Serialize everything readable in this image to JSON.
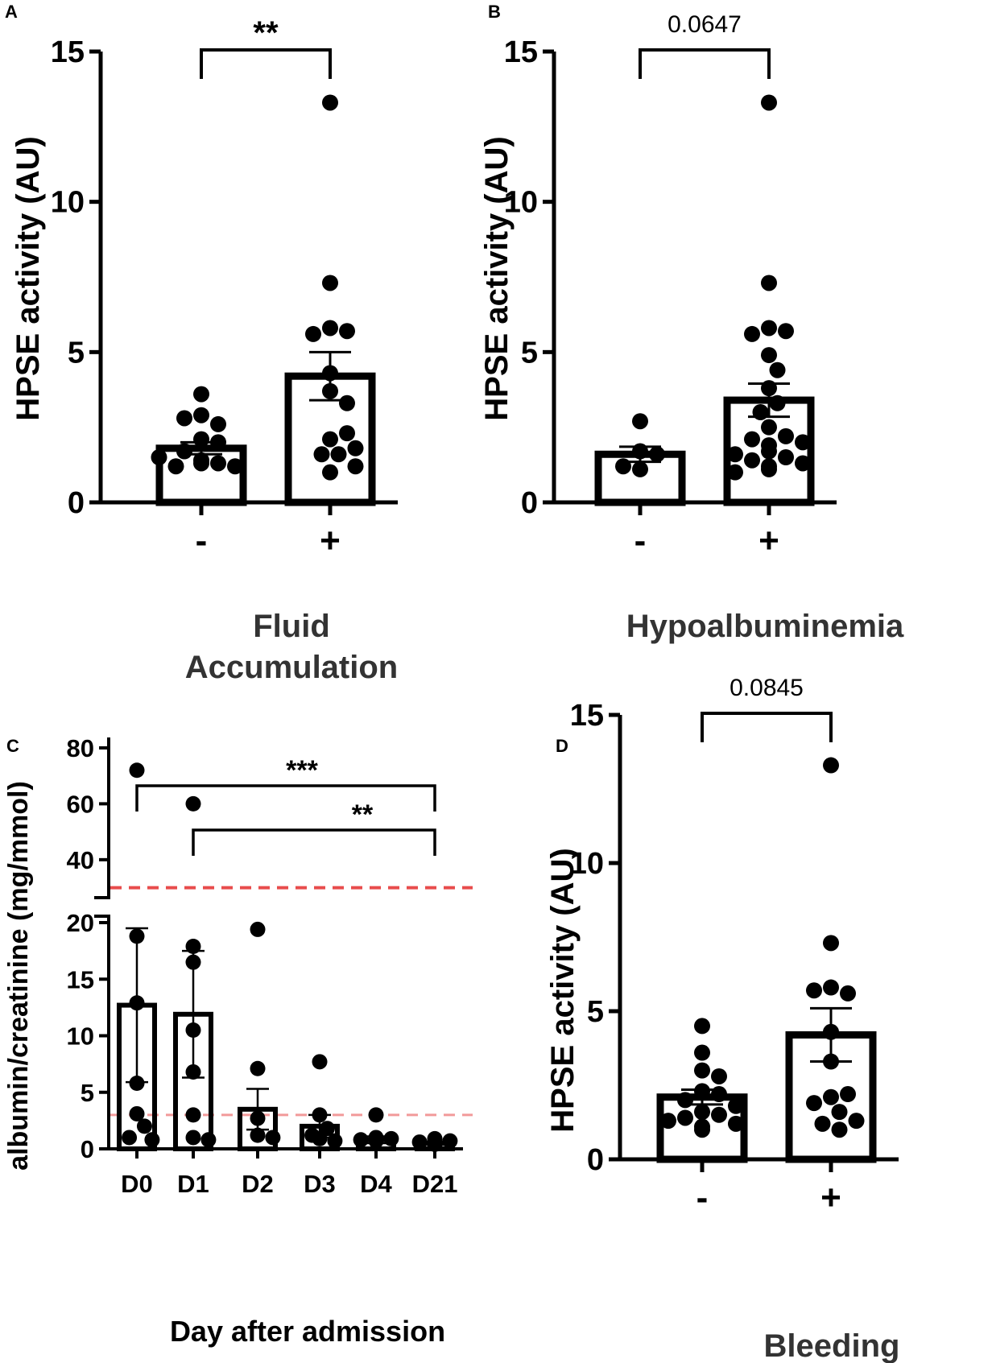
{
  "chart_data": [
    {
      "panel": "A",
      "type": "bar",
      "ylabel": "HPSE activity (AU)",
      "xlabel_lines": [
        "Fluid",
        "Accumulation"
      ],
      "categories": [
        "-",
        "+"
      ],
      "ylim": [
        0,
        15
      ],
      "yticks": [
        0,
        5,
        10,
        15
      ],
      "ytick_labels": [
        "0",
        "5",
        "10",
        "15"
      ],
      "means": [
        1.8,
        4.2
      ],
      "sem": [
        0.2,
        0.8
      ],
      "points": [
        [
          3.6,
          2.9,
          2.6,
          2.8,
          2.1,
          2.0,
          1.7,
          1.4,
          1.3,
          1.2,
          1.2,
          1.5,
          1.3
        ],
        [
          13.3,
          7.3,
          5.8,
          5.7,
          5.6,
          4.3,
          3.7,
          3.3,
          2.1,
          1.6,
          1.6,
          1.2,
          1.0,
          1.8,
          2.3
        ]
      ],
      "significance": {
        "pair": [
          0,
          1
        ],
        "label": "**"
      }
    },
    {
      "panel": "B",
      "type": "bar",
      "ylabel": "HPSE activity (AU)",
      "xlabel_lines": [
        "Hypoalbuminemia"
      ],
      "categories": [
        "-",
        "+"
      ],
      "ylim": [
        0,
        15
      ],
      "yticks": [
        0,
        5,
        10,
        15
      ],
      "ytick_labels": [
        "0",
        "5",
        "10",
        "15"
      ],
      "means": [
        1.6,
        3.4
      ],
      "sem": [
        0.25,
        0.55
      ],
      "points": [
        [
          2.7,
          1.7,
          1.6,
          1.1,
          1.2
        ],
        [
          13.3,
          7.3,
          5.8,
          5.7,
          5.6,
          4.9,
          4.4,
          3.8,
          3.3,
          3.0,
          2.5,
          2.2,
          2.1,
          2.0,
          1.7,
          1.5,
          1.4,
          1.3,
          1.1,
          1.0,
          1.2,
          1.6,
          1.9
        ]
      ],
      "significance": {
        "pair": [
          0,
          1
        ],
        "label": "0.0647"
      }
    },
    {
      "panel": "C",
      "type": "bar",
      "ylabel": "albumin/creatinine (mg/mmol)",
      "xlabel": "Day after admission",
      "categories": [
        "D0",
        "D1",
        "D2",
        "D3",
        "D4",
        "D21"
      ],
      "y_segments": [
        {
          "range": [
            0,
            20
          ],
          "ticks": [
            0,
            5,
            10,
            15,
            20
          ],
          "tick_labels": [
            "0",
            "5",
            "10",
            "15",
            "20"
          ]
        },
        {
          "range": [
            27,
            82
          ],
          "ticks": [
            40,
            60,
            80
          ],
          "tick_labels": [
            "40",
            "60",
            "80"
          ]
        }
      ],
      "means": [
        12.7,
        11.9,
        3.5,
        2.0,
        0.8,
        0.5
      ],
      "sem": [
        6.8,
        5.6,
        1.8,
        1.0,
        0.3,
        0.15
      ],
      "points": [
        [
          72,
          18.8,
          12.9,
          5.8,
          3.1,
          2.0,
          1.0,
          0.8
        ],
        [
          60,
          17.9,
          16.5,
          10.5,
          6.8,
          3.0,
          1.0,
          0.8
        ],
        [
          19.4,
          7.1,
          2.7,
          1.2,
          1.0
        ],
        [
          7.7,
          3.0,
          1.8,
          1.2,
          0.9,
          0.7
        ],
        [
          3.0,
          1.0,
          0.9,
          0.8,
          0.7
        ],
        [
          0.9,
          0.7,
          0.6,
          0.5,
          0.5,
          0.4
        ]
      ],
      "reference_lines": [
        {
          "y": 30,
          "color": "#e84c4c",
          "style": "dashed",
          "segment": "upper"
        },
        {
          "y": 3,
          "color": "#f29a9a",
          "style": "dashed",
          "segment": "lower"
        }
      ],
      "significance": [
        {
          "pair": [
            0,
            5
          ],
          "label": "***"
        },
        {
          "pair": [
            1,
            5
          ],
          "label": "**"
        }
      ]
    },
    {
      "panel": "D",
      "type": "bar",
      "ylabel": "HPSE activity (AU)",
      "xlabel_lines": [
        "Bleeding"
      ],
      "categories": [
        "-",
        "+"
      ],
      "ylim": [
        0,
        15
      ],
      "yticks": [
        0,
        5,
        10,
        15
      ],
      "ytick_labels": [
        "0",
        "5",
        "10",
        "15"
      ],
      "means": [
        2.1,
        4.2
      ],
      "sem": [
        0.25,
        0.9
      ],
      "points": [
        [
          4.5,
          3.6,
          3.0,
          2.8,
          2.3,
          2.2,
          2.0,
          1.8,
          1.6,
          1.5,
          1.4,
          1.3,
          1.2,
          1.1,
          1.0
        ],
        [
          13.3,
          7.3,
          5.8,
          5.6,
          5.7,
          4.3,
          3.3,
          2.1,
          1.6,
          1.2,
          1.0,
          1.9,
          1.3,
          2.2
        ]
      ],
      "significance": {
        "pair": [
          0,
          1
        ],
        "label": "0.0845"
      }
    }
  ],
  "colors": {
    "ink": "#000000",
    "text": "#222222",
    "ref_dark": "#e84c4c",
    "ref_light": "#f29a9a"
  }
}
